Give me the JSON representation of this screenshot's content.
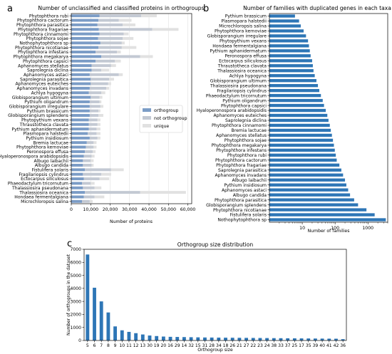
{
  "colors": {
    "orthogroup": "#7b9cc6",
    "not_orthogroup": "#c3c9d3",
    "unique": "#e1e1e1",
    "bar_blue": "#2e76b6"
  },
  "chart_data": [
    {
      "panel_label": "a",
      "type": "bar",
      "orientation": "horizontal",
      "stacked": true,
      "title": "Number of unclassified and classified proteins in orthogroups",
      "xlabel": "Number of proteins",
      "ylabel": "",
      "xlim": [
        0,
        62000
      ],
      "xticks": [
        0,
        10000,
        20000,
        30000,
        40000,
        50000,
        60000
      ],
      "xtick_labels": [
        "0",
        "10,000",
        "20,000",
        "30,000",
        "40,000",
        "50,000",
        "60,000"
      ],
      "legend_position": "center-right",
      "categories": [
        "Phytophthora rubi",
        "Phytophthora cactorum",
        "Phytophthora parasitica",
        "Phytophthora fragariae",
        "Phytophthora cinnamomi",
        "Phytophthora sojae",
        "Nothophytophthora sp",
        "Phytophthora nicotianae",
        "Phytophthora infestans",
        "Phytophthora megakarya",
        "Phytophthora capsici",
        "Aphanomyces stellatus",
        "Saprolegnia diclina",
        "Aphanomyces astaci",
        "Saprolegnia parasitica",
        "Aphanomyces euteiches",
        "Aphanomyces invadans",
        "Achlya hypogyna",
        "Globisporangium ultimum",
        "Pythium oligandrum",
        "Globisporangium irregulare",
        "Pythium brassicum",
        "Globisporangium splendens",
        "Phytopythium vexans",
        "Thraustotheca clavata",
        "Pythium aphanidermatum",
        "Plasmopara halstedii",
        "Pythium insidiosum",
        "Bremia lactucae",
        "Phytophthora kernoviae",
        "Peronospora effusa",
        "Hyaloperonospora arabidopsidis",
        "Albugo laibachii",
        "Albugo candida",
        "Fistulifera solaris",
        "Fragilariopsis cylindrus",
        "Ectocarpus siliculosus",
        "Phaeodactylum tricornutum",
        "Thalassiosira pseudonana",
        "Thalassiosira oceanica",
        "Hondaea fermentalgiana",
        "Microchloropsis salina"
      ],
      "series": [
        {
          "name": "orthogroup",
          "values": [
            14500,
            14000,
            13500,
            14200,
            14500,
            13800,
            15000,
            14000,
            12500,
            15500,
            12500,
            10500,
            10500,
            9500,
            10000,
            10000,
            9500,
            9000,
            10000,
            9500,
            9500,
            9500,
            9500,
            9000,
            9000,
            9000,
            8500,
            9500,
            8000,
            7500,
            7000,
            6500,
            6000,
            6000,
            7000,
            6000,
            6500,
            5500,
            6000,
            7000,
            6500,
            5500
          ]
        },
        {
          "name": "not orthogroup",
          "values": [
            21500,
            10500,
            13000,
            27500,
            12500,
            12700,
            11000,
            12000,
            11000,
            20000,
            10000,
            10000,
            5000,
            15000,
            9500,
            9000,
            8500,
            6500,
            4500,
            5000,
            5500,
            4500,
            4500,
            4500,
            4500,
            4000,
            4500,
            4000,
            3500,
            4000,
            4000,
            4000,
            4000,
            4500,
            13500,
            9500,
            8000,
            4500,
            6000,
            28500,
            5500,
            4000
          ]
        },
        {
          "name": "unique",
          "values": [
            8000,
            6500,
            6500,
            13500,
            2500,
            5500,
            1500,
            7500,
            2000,
            6500,
            3000,
            2500,
            4000,
            2000,
            2500,
            1500,
            1500,
            2000,
            1500,
            1000,
            1500,
            1000,
            2500,
            1500,
            1500,
            2000,
            2000,
            1500,
            1500,
            1500,
            1500,
            1500,
            1500,
            1000,
            6500,
            5000,
            5000,
            2000,
            3500,
            23500,
            5000,
            1500
          ]
        }
      ]
    },
    {
      "panel_label": "b",
      "type": "bar",
      "orientation": "horizontal",
      "title": "Number of families with duplicated genes in each taxa",
      "xlabel": "Number of families",
      "ylabel": "",
      "xscale": "log",
      "xlim": [
        1,
        4000
      ],
      "xticks": [
        10,
        100,
        1000
      ],
      "xtick_labels": [
        "10",
        "100",
        "1000"
      ],
      "grid": false,
      "categories": [
        "Pythium brassicum",
        "Plasmopara halstedii",
        "Microchloropsis salina",
        "Phytophthora kernoviae",
        "Globisporangium irregulare",
        "Phytopythium vexans",
        "Hondaea fermentalgiana",
        "Pythium aphanidermatum",
        "Peronospora effusa",
        "Ectocarpus siliculosus",
        "Thraustotheca clavata",
        "Thalassiosira oceanica",
        "Achlya hypogyna",
        "Globisporangium ultimum",
        "Thalassiosira pseudonana",
        "Fragilariopsis cylindrus",
        "Phaeodactylum tricornutum",
        "Pythium oligandrum",
        "Phytophthora capsici",
        "Hyaloperonospora arabidopsidis",
        "Aphanomyces euteiches",
        "Saprolegnia diclina",
        "Phytophthora cinnamomi",
        "Bremia lactucae",
        "Aphanomyces stellatus",
        "Phytophthora sojae",
        "Phytophthora megakarya",
        "Phytophthora infestans",
        "Phytophthora rubi",
        "Phytophthora cactorum",
        "Phytophthora fragariae",
        "Saprolegnia parasitica",
        "Aphanomyces invadans",
        "Albugo laibachii",
        "Pythium insidiosum",
        "Aphanomyces astaci",
        "Albugo candida",
        "Phytophthora parasitica",
        "Globisporangium splendens",
        "Phytophthora nicotianae",
        "Fistulifera solaris",
        "Nothophytophthora sp"
      ],
      "values": [
        6,
        8,
        9,
        11,
        13,
        15,
        16,
        17,
        18,
        20,
        21,
        22,
        24,
        27,
        30,
        33,
        37,
        42,
        46,
        52,
        58,
        63,
        69,
        74,
        80,
        86,
        92,
        98,
        105,
        112,
        135,
        155,
        175,
        200,
        220,
        250,
        285,
        380,
        500,
        900,
        1600,
        3500
      ]
    },
    {
      "panel_label": "c",
      "type": "bar",
      "title": "Orthogroup size distribution",
      "xlabel": "Orthogroup size",
      "ylabel": "Number of orthogroups in the dataset",
      "ylim": [
        0,
        7000
      ],
      "yticks": [
        0,
        1000,
        2000,
        3000,
        4000,
        5000,
        6000,
        7000
      ],
      "categories": [
        "5",
        "6",
        "7",
        "8",
        "9",
        "10",
        "11",
        "12",
        "13",
        "14",
        "15",
        "16",
        "17",
        "18",
        "19",
        "20",
        "21",
        "22",
        "23",
        "24",
        "25",
        "26",
        "27",
        "28",
        "29",
        "30",
        "31",
        "32",
        "33",
        "34",
        "35",
        "36",
        "37",
        "38",
        "39",
        "40",
        "41",
        "42"
      ],
      "tick_labels": [
        "5",
        "6",
        "7",
        "8",
        "9",
        "10",
        "11",
        "12",
        "13",
        "30",
        "19",
        "20",
        "16",
        "29",
        "14",
        "32",
        "15",
        "31",
        "28",
        "34",
        "18",
        "26",
        "21",
        "27",
        "22",
        "23",
        "24",
        "38",
        "33",
        "37",
        "25",
        "17",
        "35",
        "39",
        "40",
        "41",
        "42",
        "36"
      ],
      "values": [
        6600,
        4050,
        3000,
        2150,
        1080,
        780,
        660,
        560,
        460,
        380,
        340,
        300,
        280,
        270,
        260,
        250,
        240,
        230,
        225,
        220,
        215,
        210,
        205,
        200,
        195,
        190,
        185,
        180,
        175,
        170,
        165,
        160,
        155,
        150,
        145,
        140,
        135,
        100
      ]
    }
  ]
}
